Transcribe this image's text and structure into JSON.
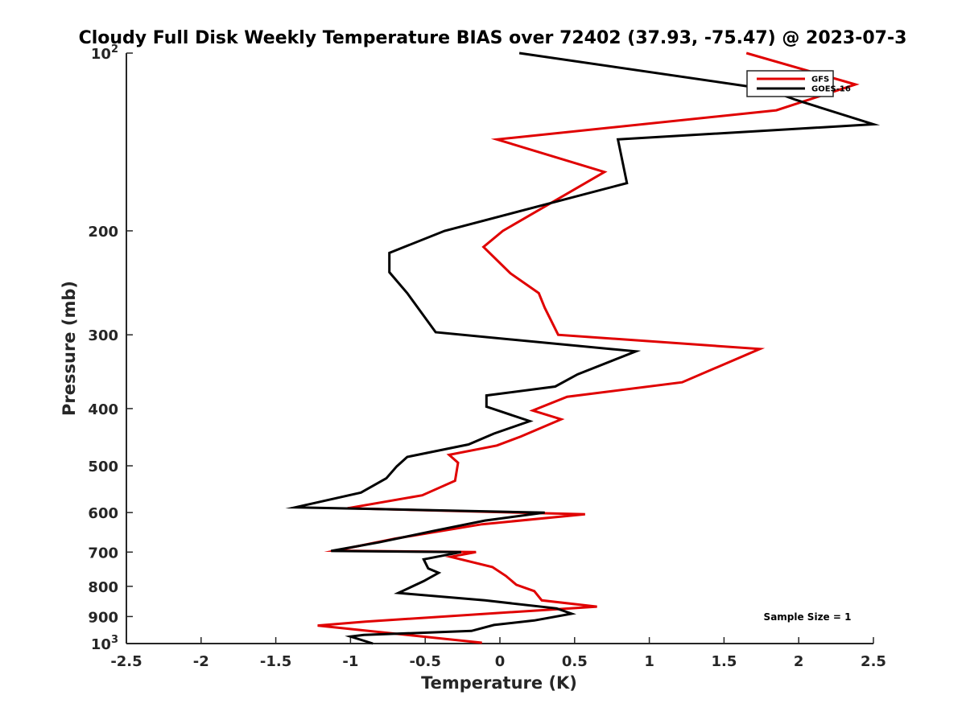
{
  "chart_data": {
    "type": "line",
    "title": "Cloudy Full Disk Weekly Temperature BIAS over 72402 (37.93, -75.47) @ 2023-07-3",
    "xlabel": "Temperature (K)",
    "ylabel": "Pressure (mb)",
    "xlim": [
      -2.5,
      2.5
    ],
    "ylim": [
      100,
      1000
    ],
    "yscale": "log",
    "y_reversed": true,
    "x_ticks": [
      "-2.5",
      "-2",
      "-1.5",
      "-1",
      "-0.5",
      "0",
      "0.5",
      "1",
      "1.5",
      "2",
      "2.5"
    ],
    "y_ticks": [
      {
        "value": 100,
        "base": "10",
        "exp": "2"
      },
      {
        "value": 200,
        "label": "200"
      },
      {
        "value": 300,
        "label": "300"
      },
      {
        "value": 400,
        "label": "400"
      },
      {
        "value": 500,
        "label": "500"
      },
      {
        "value": 600,
        "label": "600"
      },
      {
        "value": 700,
        "label": "700"
      },
      {
        "value": 800,
        "label": "800"
      },
      {
        "value": 900,
        "label": "900"
      },
      {
        "value": 1000,
        "base": "10",
        "exp": "3"
      }
    ],
    "grid": false,
    "legend_position": "top-right",
    "annotation": "Sample Size = 1",
    "series": [
      {
        "name": "GFS",
        "color": "#e00000",
        "points": [
          [
            1.65,
            100
          ],
          [
            2.38,
            113
          ],
          [
            1.85,
            125
          ],
          [
            -0.02,
            140
          ],
          [
            0.7,
            159
          ],
          [
            0.02,
            200
          ],
          [
            -0.11,
            213
          ],
          [
            0.07,
            236
          ],
          [
            0.26,
            255
          ],
          [
            0.3,
            270
          ],
          [
            0.39,
            300
          ],
          [
            1.74,
            317
          ],
          [
            1.22,
            361
          ],
          [
            0.45,
            382
          ],
          [
            0.22,
            403
          ],
          [
            0.41,
            417
          ],
          [
            0.14,
            446
          ],
          [
            -0.02,
            462
          ],
          [
            -0.34,
            479
          ],
          [
            -0.28,
            494
          ],
          [
            -0.3,
            530
          ],
          [
            -0.52,
            561
          ],
          [
            -1.02,
            590
          ],
          [
            0.57,
            604
          ],
          [
            -0.12,
            628
          ],
          [
            -0.7,
            664
          ],
          [
            -1.1,
            696
          ],
          [
            -0.16,
            700
          ],
          [
            -0.33,
            713
          ],
          [
            -0.05,
            742
          ],
          [
            0.04,
            768
          ],
          [
            0.11,
            795
          ],
          [
            0.23,
            815
          ],
          [
            0.28,
            845
          ],
          [
            0.65,
            866
          ],
          [
            -0.9,
            918
          ],
          [
            -1.22,
            932
          ],
          [
            -0.12,
            997
          ]
        ]
      },
      {
        "name": "GOES-16",
        "color": "#000000",
        "points": [
          [
            0.13,
            100
          ],
          [
            1.78,
            115
          ],
          [
            1.98,
            120
          ],
          [
            2.5,
            132
          ],
          [
            0.79,
            140
          ],
          [
            0.85,
            166
          ],
          [
            -0.37,
            200
          ],
          [
            -0.74,
            218
          ],
          [
            -0.74,
            235
          ],
          [
            -0.62,
            255
          ],
          [
            -0.43,
            297
          ],
          [
            0.91,
            320
          ],
          [
            0.52,
            350
          ],
          [
            0.37,
            367
          ],
          [
            -0.09,
            380
          ],
          [
            -0.09,
            397
          ],
          [
            0.2,
            420
          ],
          [
            -0.04,
            441
          ],
          [
            -0.21,
            460
          ],
          [
            -0.62,
            483
          ],
          [
            -0.69,
            501
          ],
          [
            -0.76,
            525
          ],
          [
            -0.93,
            555
          ],
          [
            -1.37,
            588
          ],
          [
            0.3,
            600
          ],
          [
            -0.1,
            619
          ],
          [
            -0.45,
            645
          ],
          [
            -0.81,
            674
          ],
          [
            -1.13,
            697
          ],
          [
            -0.26,
            700
          ],
          [
            -0.51,
            720
          ],
          [
            -0.48,
            746
          ],
          [
            -0.41,
            759
          ],
          [
            -0.51,
            784
          ],
          [
            -0.68,
            821
          ],
          [
            -0.1,
            845
          ],
          [
            0.38,
            872
          ],
          [
            0.48,
            890
          ],
          [
            0.23,
            914
          ],
          [
            -0.04,
            930
          ],
          [
            -0.19,
            952
          ],
          [
            -0.91,
            967
          ],
          [
            -1.0,
            973
          ],
          [
            -0.85,
            1000
          ]
        ]
      }
    ]
  }
}
